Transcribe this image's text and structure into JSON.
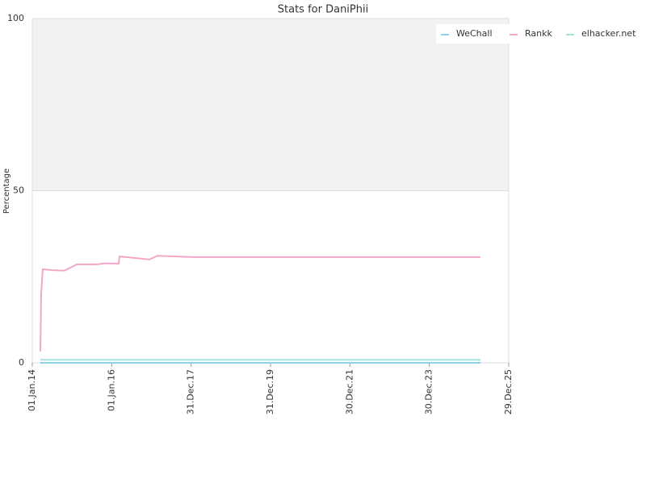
{
  "chart_data": {
    "type": "line",
    "title": "Stats for DaniPhii",
    "y_label": "Percentage",
    "xlim": [
      "2014-01-01",
      "2025-12-29"
    ],
    "xticks": [
      {
        "value": "2014-01-01",
        "label": "01.Jan.14"
      },
      {
        "value": "2016-01-01",
        "label": "01.Jan.16"
      },
      {
        "value": "2017-12-31",
        "label": "31.Dec.17"
      },
      {
        "value": "2019-12-31",
        "label": "31.Dec.19"
      },
      {
        "value": "2021-12-30",
        "label": "30.Dec.21"
      },
      {
        "value": "2023-12-30",
        "label": "30.Dec.23"
      },
      {
        "value": "2025-12-29",
        "label": "29.Dec.25"
      }
    ],
    "ylim": [
      0,
      100
    ],
    "yticks": [
      0,
      50,
      100
    ],
    "legend": "top-right",
    "series": [
      {
        "name": "WeChall",
        "color": "#8fd0e8",
        "x": [
          "2014-03-16",
          "2025-04-13"
        ],
        "values": [
          0,
          0
        ]
      },
      {
        "name": "Rankk",
        "color": "#f2a7c9",
        "x": [
          "2014-03-16",
          "2014-03-24",
          "2014-04-07",
          "2014-07-06",
          "2014-10-25",
          "2015-02-13",
          "2015-08-18",
          "2015-10-31",
          "2016-03-05",
          "2016-03-13",
          "2016-06-10",
          "2016-12-12",
          "2017-02-25",
          "2018-01-25",
          "2025-04-13"
        ],
        "values": [
          3.3,
          20,
          27.2,
          26.9,
          26.8,
          28.6,
          28.6,
          28.9,
          28.8,
          30.9,
          30.6,
          30,
          31.1,
          30.7,
          30.7
        ]
      },
      {
        "name": "elhacker.net",
        "color": "#a6e3d9",
        "x": [
          "2014-03-16",
          "2025-04-13"
        ],
        "values": [
          0.9,
          0.9
        ]
      }
    ]
  }
}
